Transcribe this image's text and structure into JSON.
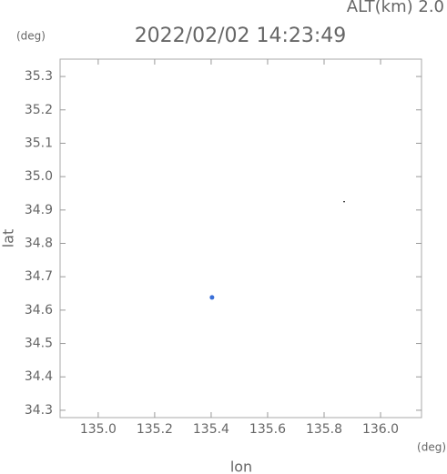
{
  "chart_data": {
    "type": "scatter",
    "title": "2022/02/02 14:23:49",
    "annotation": "ALT(km) 2.0",
    "y_unit": "(deg)",
    "x_unit": "(deg)",
    "xlabel": "lon",
    "ylabel": "lat",
    "xlim": [
      134.865,
      136.145
    ],
    "ylim": [
      34.278,
      35.352
    ],
    "xticks": [
      {
        "value": 135,
        "label": "135.0"
      },
      135.2,
      135.4,
      135.6,
      135.8,
      {
        "value": 136,
        "label": "136.0"
      }
    ],
    "yticks": [
      34.3,
      34.4,
      34.5,
      34.6,
      34.7,
      34.8,
      34.9,
      {
        "value": 35,
        "label": "35.0"
      },
      35.1,
      35.2,
      35.3
    ],
    "series": [
      {
        "color": "#3a6fd8",
        "x": [
          135.403
        ],
        "values": [
          34.638
        ]
      },
      {
        "color": "#000000",
        "x": [
          135.871
        ],
        "values": [
          34.925
        ]
      }
    ]
  }
}
